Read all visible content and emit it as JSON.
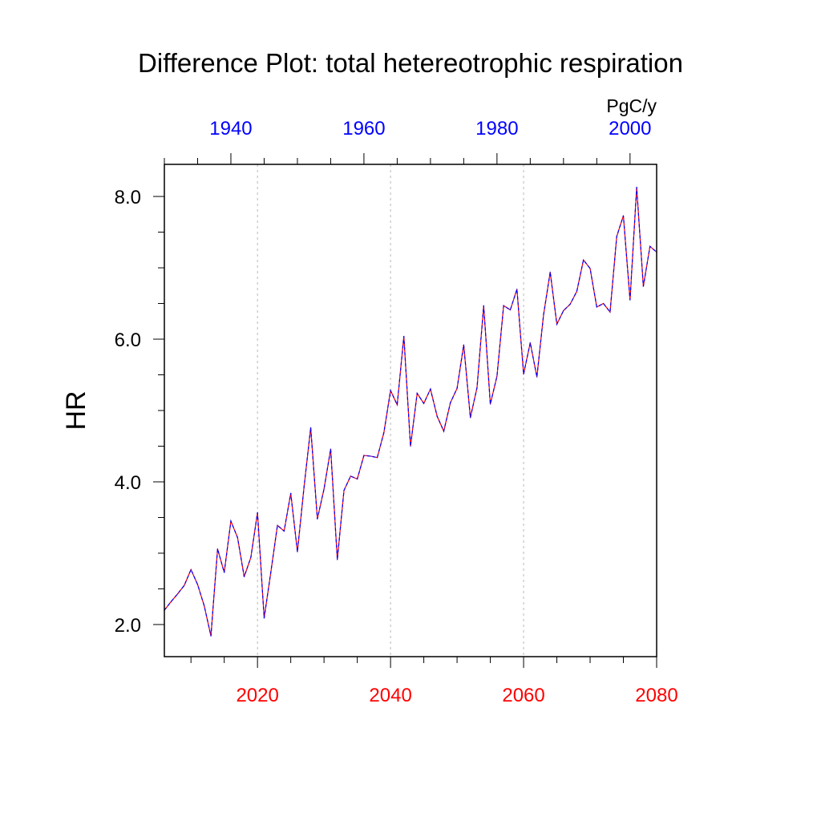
{
  "chart_data": {
    "type": "line",
    "title": "Difference Plot: total hetereotrophic respiration",
    "units": "PgC/y",
    "ylabel": "HR",
    "xlabel": "",
    "ylim": [
      1.55,
      8.45
    ],
    "yticks": [
      2.0,
      4.0,
      6.0,
      8.0
    ],
    "ytick_labels": [
      "2.0",
      "4.0",
      "6.0",
      "8.0"
    ],
    "bottom_axis": {
      "range": [
        2006,
        2080
      ],
      "ticks": [
        2020,
        2040,
        2060,
        2080
      ],
      "tick_labels": [
        "2020",
        "2040",
        "2060",
        "2080"
      ],
      "color": "#ff0000"
    },
    "top_axis": {
      "range": [
        1930,
        2004
      ],
      "ticks": [
        1940,
        1960,
        1980,
        2000
      ],
      "tick_labels": [
        "1940",
        "1960",
        "1980",
        "2000"
      ],
      "color": "#0000ff"
    },
    "grid": "dashed vertical at bottom-axis major ticks",
    "series": [
      {
        "color_a": "#ff0000",
        "color_b": "#0000ff",
        "x": [
          2006,
          2007,
          2008,
          2009,
          2010,
          2011,
          2012,
          2013,
          2014,
          2015,
          2016,
          2017,
          2018,
          2019,
          2020,
          2021,
          2022,
          2023,
          2024,
          2025,
          2026,
          2027,
          2028,
          2029,
          2030,
          2031,
          2032,
          2033,
          2034,
          2035,
          2036,
          2037,
          2038,
          2039,
          2040,
          2041,
          2042,
          2043,
          2044,
          2045,
          2046,
          2047,
          2048,
          2049,
          2050,
          2051,
          2052,
          2053,
          2054,
          2055,
          2056,
          2057,
          2058,
          2059,
          2060,
          2061,
          2062,
          2063,
          2064,
          2065,
          2066,
          2067,
          2068,
          2069,
          2070,
          2071,
          2072,
          2073,
          2074,
          2075,
          2076,
          2077,
          2078,
          2079,
          2080
        ],
        "values": [
          2.2,
          2.32,
          2.43,
          2.55,
          2.77,
          2.56,
          2.26,
          1.84,
          3.06,
          2.73,
          3.45,
          3.22,
          2.67,
          2.94,
          3.57,
          2.09,
          2.73,
          3.39,
          3.31,
          3.84,
          3.02,
          3.93,
          4.76,
          3.48,
          3.9,
          4.46,
          2.91,
          3.88,
          4.08,
          4.04,
          4.37,
          4.36,
          4.34,
          4.69,
          5.28,
          5.08,
          6.04,
          4.5,
          5.24,
          5.1,
          5.3,
          4.92,
          4.71,
          5.11,
          5.31,
          5.92,
          4.9,
          5.32,
          6.47,
          5.09,
          5.48,
          6.47,
          6.41,
          6.7,
          5.51,
          5.95,
          5.47,
          6.34,
          6.94,
          6.21,
          6.4,
          6.49,
          6.67,
          7.11,
          6.99,
          6.45,
          6.5,
          6.38,
          7.44,
          7.73,
          6.55,
          8.13,
          6.74,
          7.3,
          7.22
        ]
      }
    ]
  }
}
